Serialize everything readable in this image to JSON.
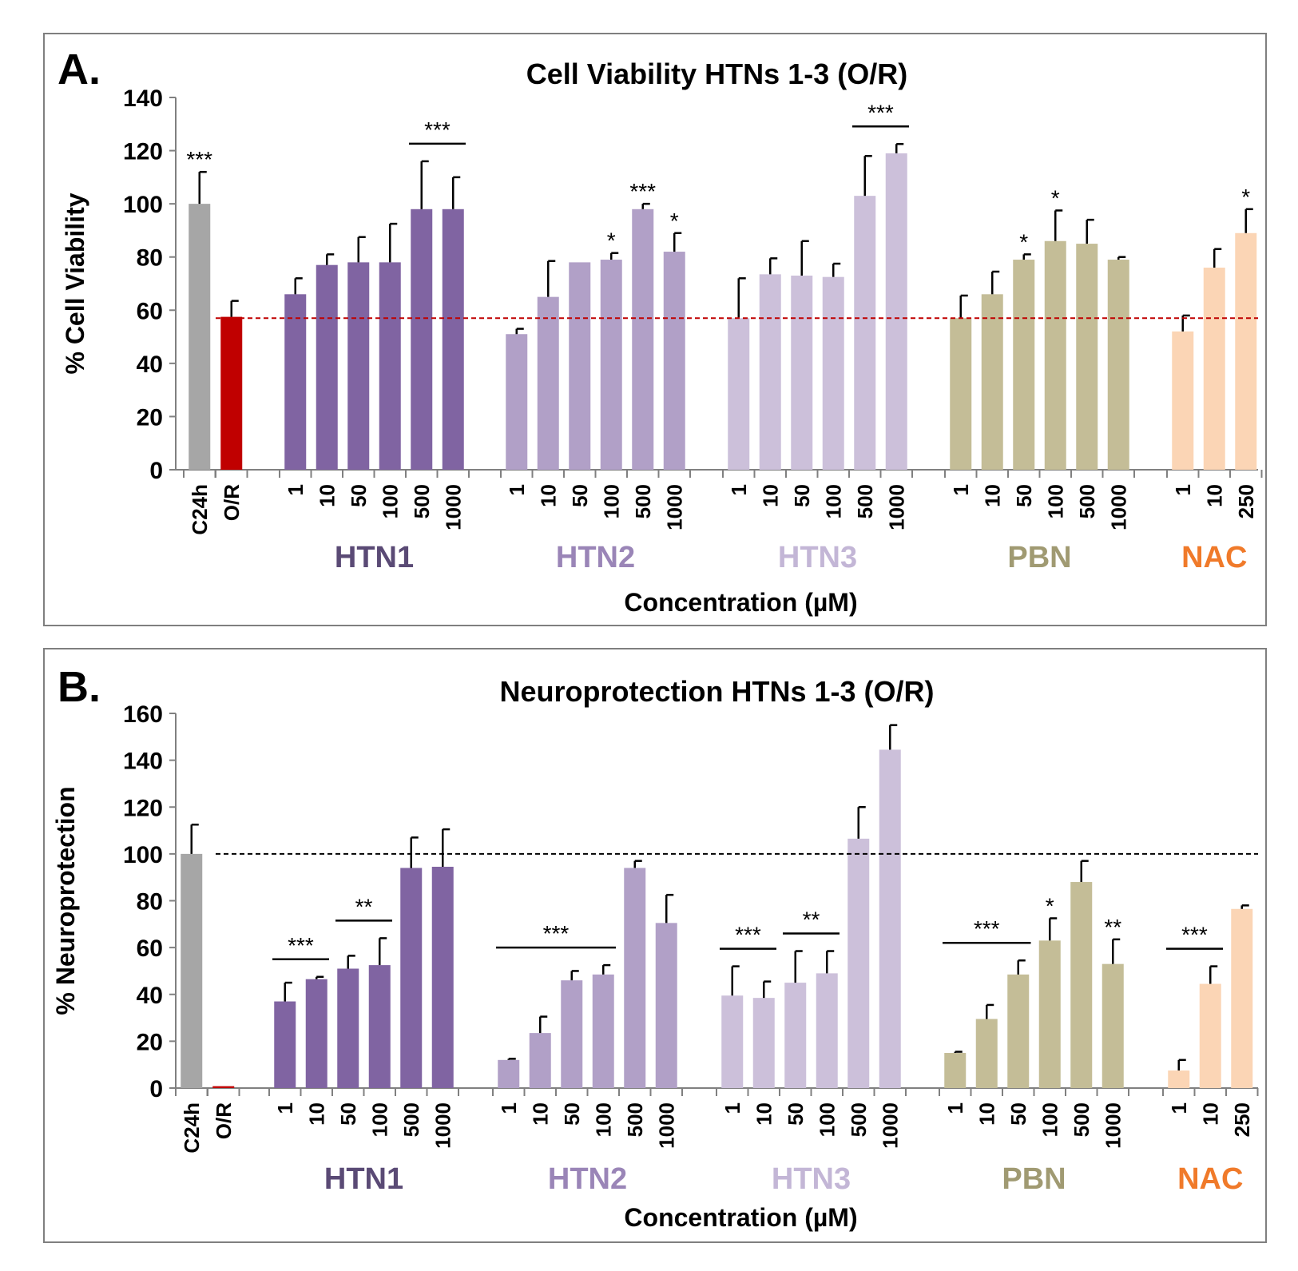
{
  "chart_data": [
    {
      "type": "bar",
      "panel_letter": "A.",
      "title": "Cell Viability HTNs 1-3 (O/R)",
      "xlabel": "Concentration (µM)",
      "ylabel": "% Cell Viability",
      "ylim": [
        0,
        140
      ],
      "yticks": [
        "0",
        "20",
        "40",
        "60",
        "80",
        "100",
        "120",
        "140"
      ],
      "reference_line": {
        "value": 57,
        "style": "dashed",
        "color": "#c00000"
      },
      "groups": [
        {
          "name": "",
          "color": "#a6a6a6",
          "labels": [
            "C24h"
          ],
          "values": [
            100
          ],
          "errors": [
            12
          ],
          "sig": [
            "***"
          ]
        },
        {
          "name": "",
          "color": "#c00000",
          "labels": [
            "O/R"
          ],
          "values": [
            57.5
          ],
          "errors": [
            6
          ],
          "sig": [
            ""
          ]
        },
        {
          "name": "HTN1",
          "color": "#8064a2",
          "label_color": "#5a4a75",
          "labels": [
            "1",
            "10",
            "50",
            "100",
            "500",
            "1000"
          ],
          "values": [
            66,
            77,
            78,
            78,
            98,
            98
          ],
          "errors": [
            6,
            4,
            9.5,
            14.5,
            18,
            12
          ],
          "sig": [
            "",
            "",
            "",
            "",
            "",
            ""
          ]
        },
        {
          "name": "HTN2",
          "color": "#b1a0c7",
          "label_color": "#9a85b7",
          "labels": [
            "1",
            "10",
            "50",
            "100",
            "500",
            "1000"
          ],
          "values": [
            51,
            65,
            78,
            79,
            98,
            82
          ],
          "errors": [
            2,
            13.5,
            0,
            2.5,
            2,
            7
          ],
          "sig": [
            "",
            "",
            "",
            "*",
            "***",
            "*"
          ]
        },
        {
          "name": "HTN3",
          "color": "#ccc0da",
          "label_color": "#c3b6d6",
          "labels": [
            "1",
            "10",
            "50",
            "100",
            "500",
            "1000"
          ],
          "values": [
            57,
            73.5,
            73,
            72.5,
            103,
            119
          ],
          "errors": [
            15,
            6,
            13,
            5,
            15,
            3.5
          ],
          "sig": [
            "",
            "",
            "",
            "",
            "",
            ""
          ]
        },
        {
          "name": "PBN",
          "color": "#c4bd97",
          "label_color": "#a09a72",
          "labels": [
            "1",
            "10",
            "50",
            "100",
            "500",
            "1000"
          ],
          "values": [
            57,
            66,
            79,
            86,
            85,
            79
          ],
          "errors": [
            8.5,
            8.5,
            2,
            11.5,
            9,
            1
          ],
          "sig": [
            "",
            "",
            "*",
            "*",
            "",
            ""
          ]
        },
        {
          "name": "NAC",
          "color": "#fbd5b5",
          "label_color": "#f07a2a",
          "labels": [
            "1",
            "10",
            "250"
          ],
          "values": [
            52,
            76,
            89
          ],
          "errors": [
            6,
            7,
            9
          ],
          "sig": [
            "",
            "",
            "*"
          ]
        }
      ],
      "brackets": [
        {
          "group": 2,
          "from": 4,
          "to": 5,
          "label": "***"
        },
        {
          "group": 4,
          "from": 4,
          "to": 5,
          "label": "***"
        }
      ]
    },
    {
      "type": "bar",
      "panel_letter": "B.",
      "title": "Neuroprotection  HTNs 1-3 (O/R)",
      "xlabel": "Concentration (µM)",
      "ylabel": "% Neuroprotection",
      "ylim": [
        0,
        160
      ],
      "yticks": [
        "0",
        "20",
        "40",
        "60",
        "80",
        "100",
        "120",
        "140",
        "160"
      ],
      "reference_line": {
        "value": 100,
        "style": "dashed",
        "color": "#000000"
      },
      "groups": [
        {
          "name": "",
          "color": "#a6a6a6",
          "labels": [
            "C24h"
          ],
          "values": [
            100
          ],
          "errors": [
            12.5
          ],
          "sig": [
            ""
          ]
        },
        {
          "name": "",
          "color": "#c00000",
          "labels": [
            "O/R"
          ],
          "values": [
            0.8
          ],
          "errors": [
            0
          ],
          "sig": [
            ""
          ]
        },
        {
          "name": "HTN1",
          "color": "#8064a2",
          "label_color": "#5a4a75",
          "labels": [
            "1",
            "10",
            "50",
            "100",
            "500",
            "1000"
          ],
          "values": [
            37,
            46.5,
            51,
            52.5,
            94,
            94.5
          ],
          "errors": [
            8,
            1,
            5.5,
            11.5,
            13,
            16
          ],
          "sig": [
            "",
            "",
            "",
            "",
            "",
            ""
          ]
        },
        {
          "name": "HTN2",
          "color": "#b1a0c7",
          "label_color": "#9a85b7",
          "labels": [
            "1",
            "10",
            "50",
            "100",
            "500",
            "1000"
          ],
          "values": [
            12,
            23.5,
            46,
            48.5,
            94,
            70.5
          ],
          "errors": [
            0.5,
            7,
            4,
            4,
            3,
            12
          ],
          "sig": [
            "",
            "",
            "",
            "",
            "",
            ""
          ]
        },
        {
          "name": "HTN3",
          "color": "#ccc0da",
          "label_color": "#c3b6d6",
          "labels": [
            "1",
            "10",
            "50",
            "100",
            "500",
            "1000"
          ],
          "values": [
            39.5,
            38.5,
            45,
            49,
            106.5,
            144.5
          ],
          "errors": [
            12.5,
            7,
            13.5,
            9.5,
            13.5,
            10.5
          ],
          "sig": [
            "",
            "",
            "",
            "",
            "",
            ""
          ]
        },
        {
          "name": "PBN",
          "color": "#c4bd97",
          "label_color": "#a09a72",
          "labels": [
            "1",
            "10",
            "50",
            "100",
            "500",
            "1000"
          ],
          "values": [
            15,
            29.5,
            48.5,
            63,
            88,
            53
          ],
          "errors": [
            0.5,
            6,
            6,
            9.5,
            9,
            10.5
          ],
          "sig": [
            "",
            "",
            "",
            "*",
            "",
            "**"
          ]
        },
        {
          "name": "NAC",
          "color": "#fbd5b5",
          "label_color": "#f07a2a",
          "labels": [
            "1",
            "10",
            "250"
          ],
          "values": [
            7.5,
            44.5,
            76.5
          ],
          "errors": [
            4.5,
            7.5,
            1.5
          ],
          "sig": [
            "",
            "",
            ""
          ]
        }
      ],
      "brackets": [
        {
          "group": 2,
          "from": 0,
          "to": 1,
          "label": "***"
        },
        {
          "group": 2,
          "from": 2,
          "to": 3,
          "label": "**"
        },
        {
          "group": 3,
          "from": 0,
          "to": 3,
          "label": "***"
        },
        {
          "group": 4,
          "from": 0,
          "to": 1,
          "label": "***"
        },
        {
          "group": 4,
          "from": 2,
          "to": 3,
          "label": "**"
        },
        {
          "group": 5,
          "from": 0,
          "to": 2,
          "label": "***"
        },
        {
          "group": 6,
          "from": 0,
          "to": 1,
          "label": "***"
        }
      ]
    }
  ]
}
